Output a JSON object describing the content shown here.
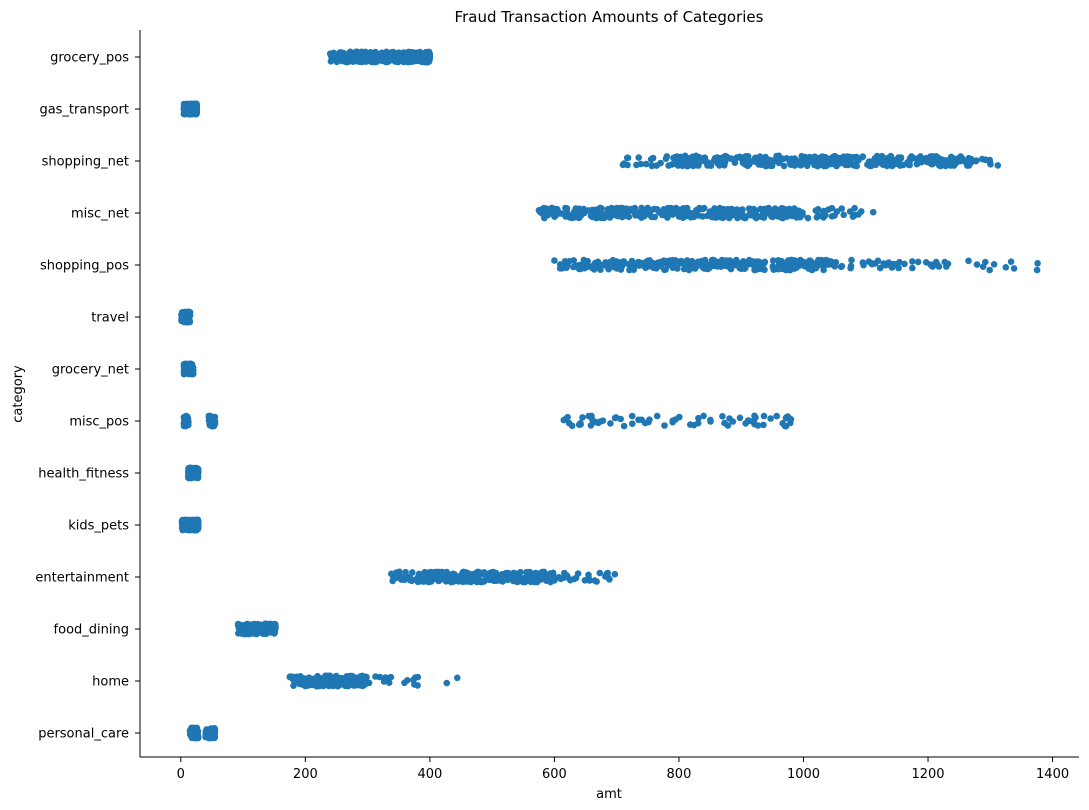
{
  "chart_data": {
    "type": "scatter",
    "subtype": "strip",
    "title": "Fraud Transaction Amounts of Categories",
    "xlabel": "amt",
    "ylabel": "category",
    "xlim": [
      -70,
      1445
    ],
    "xticks": [
      0,
      200,
      400,
      600,
      800,
      1000,
      1200,
      1400
    ],
    "grid": false,
    "legend": "none",
    "color": "#1f77b4",
    "categories": [
      "grocery_pos",
      "gas_transport",
      "shopping_net",
      "misc_net",
      "shopping_pos",
      "travel",
      "grocery_net",
      "misc_pos",
      "health_fitness",
      "kids_pets",
      "entertainment",
      "food_dining",
      "home",
      "personal_care"
    ],
    "series": [
      {
        "category": "grocery_pos",
        "count": 1743,
        "min": 240,
        "max": 400,
        "dense_min": 255,
        "dense_max": 390
      },
      {
        "category": "gas_transport",
        "count": 618,
        "min": 5,
        "max": 25,
        "dense_min": 5,
        "dense_max": 25
      },
      {
        "category": "shopping_net",
        "count": 1713,
        "min": 710,
        "max": 1312,
        "dense_min": 795,
        "dense_max": 1215
      },
      {
        "category": "misc_net",
        "count": 915,
        "min": 575,
        "max": 1112,
        "dense_min": 615,
        "dense_max": 985
      },
      {
        "category": "shopping_pos",
        "count": 843,
        "min": 600,
        "max": 1376,
        "dense_min": 640,
        "dense_max": 1050
      },
      {
        "category": "travel",
        "count": 116,
        "min": 1,
        "max": 15,
        "dense_min": 2,
        "dense_max": 13
      },
      {
        "category": "grocery_net",
        "count": 134,
        "min": 5,
        "max": 20,
        "dense_min": 6,
        "dense_max": 19
      },
      {
        "category": "misc_pos",
        "count": 250,
        "min": 5,
        "max": 1036,
        "clusters": [
          [
            5,
            12
          ],
          [
            45,
            55
          ],
          [
            615,
            980
          ]
        ]
      },
      {
        "category": "health_fitness",
        "count": 133,
        "min": 12,
        "max": 28,
        "dense_min": 13,
        "dense_max": 27
      },
      {
        "category": "kids_pets",
        "count": 239,
        "min": 2,
        "max": 28,
        "dense_min": 3,
        "dense_max": 27
      },
      {
        "category": "entertainment",
        "count": 292,
        "min": 338,
        "max": 697,
        "dense_min": 380,
        "dense_max": 590
      },
      {
        "category": "food_dining",
        "count": 205,
        "min": 92,
        "max": 152,
        "dense_min": 97,
        "dense_max": 150
      },
      {
        "category": "home",
        "count": 198,
        "min": 175,
        "max": 444,
        "dense_min": 200,
        "dense_max": 300
      },
      {
        "category": "personal_care",
        "count": 220,
        "min": 15,
        "max": 55,
        "clusters": [
          [
            15,
            28
          ],
          [
            40,
            55
          ]
        ]
      }
    ]
  }
}
